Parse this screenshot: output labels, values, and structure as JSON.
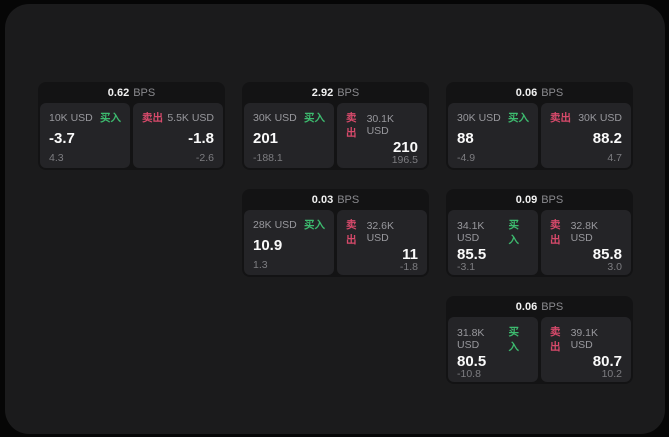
{
  "panel": {
    "bps_suffix": "BPS",
    "buy_label": "买入",
    "sell_label": "卖出",
    "colors": {
      "buy": "#3dbb6f",
      "sell": "#d84a6b",
      "panel_bg": "#1b1b1c",
      "card_bg": "#131314",
      "tile_bg": "#242427",
      "outer_bg": "#060606"
    },
    "cards": [
      {
        "bps": "0.62",
        "row": 1,
        "col": 1,
        "buy": {
          "size": "10K USD",
          "value": "-3.7",
          "sub": "4.3"
        },
        "sell": {
          "size": "5.5K USD",
          "value": "-1.8",
          "sub": "-2.6"
        }
      },
      {
        "bps": "2.92",
        "row": 1,
        "col": 2,
        "buy": {
          "size": "30K USD",
          "value": "201",
          "sub": "-188.1"
        },
        "sell": {
          "size": "30.1K USD",
          "value": "210",
          "sub": "196.5"
        }
      },
      {
        "bps": "0.06",
        "row": 1,
        "col": 3,
        "buy": {
          "size": "30K USD",
          "value": "88",
          "sub": "-4.9"
        },
        "sell": {
          "size": "30K USD",
          "value": "88.2",
          "sub": "4.7"
        }
      },
      {
        "bps": "0.03",
        "row": 2,
        "col": 2,
        "buy": {
          "size": "28K USD",
          "value": "10.9",
          "sub": "1.3"
        },
        "sell": {
          "size": "32.6K USD",
          "value": "11",
          "sub": "-1.8"
        }
      },
      {
        "bps": "0.09",
        "row": 2,
        "col": 3,
        "buy": {
          "size": "34.1K USD",
          "value": "85.5",
          "sub": "-3.1"
        },
        "sell": {
          "size": "32.8K USD",
          "value": "85.8",
          "sub": "3.0"
        }
      },
      {
        "bps": "0.06",
        "row": 3,
        "col": 3,
        "buy": {
          "size": "31.8K USD",
          "value": "80.5",
          "sub": "-10.8"
        },
        "sell": {
          "size": "39.1K USD",
          "value": "80.7",
          "sub": "10.2"
        }
      }
    ]
  }
}
